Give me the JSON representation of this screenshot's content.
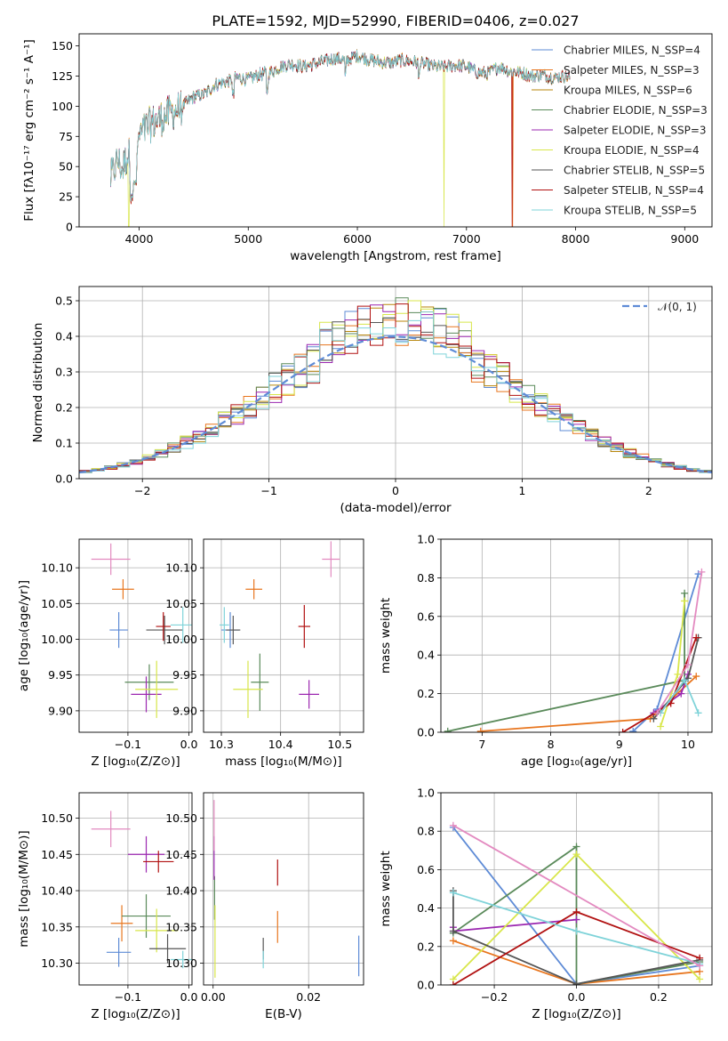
{
  "colors": [
    "#5e8bd6",
    "#e8761f",
    "#b8860b",
    "#5a8a5a",
    "#9b27b0",
    "#d8e64a",
    "#555555",
    "#b11111",
    "#7fd3d9"
  ],
  "pinkColor": "#e38ac0",
  "chart_data": [
    {
      "id": "spectrum",
      "type": "line",
      "title": "PLATE=1592, MJD=52990, FIBERID=0406, z=0.027",
      "xlabel": "wavelength [Angstrom, rest frame]",
      "ylabel": "Flux [fλ10⁻¹⁷ erg cm⁻² s⁻¹ A⁻¹]",
      "xlim": [
        3450,
        9250
      ],
      "ylim": [
        0,
        160
      ],
      "xticks": [
        4000,
        5000,
        6000,
        7000,
        8000,
        9000
      ],
      "yticks": [
        0,
        25,
        50,
        75,
        100,
        125,
        150
      ],
      "grid": false,
      "legend_position": "top-right",
      "legend": [
        "Chabrier MILES, N_SSP=4",
        "Salpeter MILES, N_SSP=3",
        "Kroupa MILES, N_SSP=6",
        "Chabrier ELODIE, N_SSP=3",
        "Salpeter ELODIE, N_SSP=3",
        "Kroupa ELODIE, N_SSP=4",
        "Chabrier STELIB, N_SSP=5",
        "Salpeter STELIB, N_SSP=4",
        "Kroupa STELIB, N_SSP=5"
      ],
      "envelope_x": [
        3740,
        3800,
        3850,
        3900,
        3950,
        4000,
        4100,
        4200,
        4300,
        4400,
        4500,
        4600,
        4700,
        4800,
        4900,
        5000,
        5100,
        5200,
        5300,
        5400,
        5500,
        5600,
        5700,
        5800,
        5900,
        6000,
        6100,
        6200,
        6300,
        6400,
        6500,
        6600,
        6700,
        6800,
        6900,
        7000,
        7100,
        7200,
        7300,
        7400,
        7500,
        7600,
        7700,
        7800,
        7900,
        8000,
        8200,
        8400,
        8600,
        8800,
        9000,
        9200
      ],
      "envelope_y": [
        40,
        55,
        48,
        62,
        45,
        75,
        85,
        90,
        95,
        100,
        108,
        110,
        118,
        120,
        124,
        122,
        126,
        128,
        133,
        135,
        133,
        135,
        137,
        140,
        138,
        142,
        139,
        137,
        136,
        138,
        137,
        135,
        133,
        132,
        134,
        133,
        128,
        127,
        133,
        129,
        128,
        125,
        126,
        124,
        125,
        123,
        121,
        119,
        116,
        112,
        108,
        104
      ],
      "dropouts": [
        {
          "x": 3905,
          "series": 5
        },
        {
          "x": 6795,
          "series": 5
        },
        {
          "x": 7420,
          "series": 7
        },
        {
          "x": 7425,
          "series": 1
        }
      ]
    },
    {
      "id": "residuals",
      "type": "line",
      "xlabel": "(data-model)/error",
      "ylabel": "Normed distribution",
      "xlim": [
        -2.5,
        2.5
      ],
      "ylim": [
        0,
        0.54
      ],
      "xticks": [
        -2,
        -1,
        0,
        1,
        2
      ],
      "yticks": [
        0.0,
        0.1,
        0.2,
        0.3,
        0.4,
        0.5
      ],
      "grid": true,
      "legend_position": "top-right",
      "reference_label": "𝒩(0, 1)",
      "bin_width": 0.1
    },
    {
      "id": "age_vs_Z",
      "type": "scatter",
      "xlabel": "Z [log₁₀(Z/Z⊙)]",
      "ylabel": "age  [log₁₀(age/yr)]",
      "xlim": [
        -0.18,
        0.005
      ],
      "ylim": [
        9.87,
        10.14
      ],
      "xticks": [
        -0.1,
        0.0
      ],
      "xtick_labels": [
        "−0.1",
        "0.0"
      ],
      "yticks": [
        9.9,
        9.95,
        10.0,
        10.05,
        10.1
      ],
      "grid": true,
      "points": [
        {
          "x": -0.115,
          "y": 10.013,
          "xerr": 0.015,
          "yerr": 0.025,
          "color": "#5e8bd6"
        },
        {
          "x": -0.108,
          "y": 10.07,
          "xerr": 0.018,
          "yerr": 0.014,
          "color": "#e8761f"
        },
        {
          "x": -0.065,
          "y": 9.94,
          "xerr": 0.04,
          "yerr": 0.025,
          "color": "#5a8a5a"
        },
        {
          "x": -0.07,
          "y": 9.923,
          "xerr": 0.025,
          "yerr": 0.025,
          "color": "#9b27b0"
        },
        {
          "x": -0.053,
          "y": 9.93,
          "xerr": 0.035,
          "yerr": 0.04,
          "color": "#d8e64a"
        },
        {
          "x": -0.04,
          "y": 10.013,
          "xerr": 0.03,
          "yerr": 0.02,
          "color": "#555555"
        },
        {
          "x": -0.042,
          "y": 10.018,
          "xerr": 0.012,
          "yerr": 0.02,
          "color": "#b11111"
        },
        {
          "x": -0.01,
          "y": 10.02,
          "xerr": 0.02,
          "yerr": 0.025,
          "color": "#7fd3d9"
        },
        {
          "x": -0.128,
          "y": 10.112,
          "xerr": 0.032,
          "yerr": 0.022,
          "color": "#e38ac0"
        }
      ]
    },
    {
      "id": "age_vs_mass",
      "type": "scatter",
      "xlabel": "mass [log₁₀(M/M⊙)]",
      "ylabel": "",
      "xlim": [
        10.27,
        10.54
      ],
      "ylim": [
        9.87,
        10.14
      ],
      "xticks": [
        10.3,
        10.4,
        10.5
      ],
      "xtick_labels": [
        "10.3",
        "10.4",
        "10.5"
      ],
      "yticks": [
        9.9,
        9.95,
        10.0,
        10.05,
        10.1
      ],
      "grid": true,
      "points": [
        {
          "x": 10.315,
          "y": 10.013,
          "xerr": 0.015,
          "yerr": 0.025,
          "color": "#5e8bd6"
        },
        {
          "x": 10.355,
          "y": 10.07,
          "xerr": 0.014,
          "yerr": 0.014,
          "color": "#e8761f"
        },
        {
          "x": 10.365,
          "y": 9.94,
          "xerr": 0.015,
          "yerr": 0.04,
          "color": "#5a8a5a"
        },
        {
          "x": 10.448,
          "y": 9.923,
          "xerr": 0.017,
          "yerr": 0.02,
          "color": "#9b27b0"
        },
        {
          "x": 10.345,
          "y": 9.93,
          "xerr": 0.025,
          "yerr": 0.04,
          "color": "#d8e64a"
        },
        {
          "x": 10.32,
          "y": 10.013,
          "xerr": 0.012,
          "yerr": 0.02,
          "color": "#555555"
        },
        {
          "x": 10.44,
          "y": 10.018,
          "xerr": 0.01,
          "yerr": 0.03,
          "color": "#b11111"
        },
        {
          "x": 10.305,
          "y": 10.02,
          "xerr": 0.008,
          "yerr": 0.025,
          "color": "#7fd3d9"
        },
        {
          "x": 10.485,
          "y": 10.112,
          "xerr": 0.015,
          "yerr": 0.025,
          "color": "#e38ac0"
        }
      ]
    },
    {
      "id": "weight_vs_age",
      "type": "line",
      "xlabel": "age  [log₁₀(age/yr)]",
      "ylabel": "mass weight",
      "xlim": [
        6.4,
        10.35
      ],
      "ylim": [
        0,
        1.0
      ],
      "xticks": [
        7,
        8,
        9,
        10
      ],
      "yticks": [
        0.0,
        0.2,
        0.4,
        0.6,
        0.8,
        1.0
      ],
      "grid": true,
      "series": [
        {
          "color": "#5e8bd6",
          "x": [
            9.2,
            9.55,
            10.15
          ],
          "y": [
            0.005,
            0.12,
            0.82
          ]
        },
        {
          "color": "#e8761f",
          "x": [
            6.98,
            9.45,
            10.12
          ],
          "y": [
            0.005,
            0.07,
            0.29
          ]
        },
        {
          "color": "#5a8a5a",
          "x": [
            6.5,
            9.95,
            9.95
          ],
          "y": [
            0.005,
            0.27,
            0.72
          ]
        },
        {
          "color": "#9b27b0",
          "x": [
            9.5,
            9.9,
            10.0
          ],
          "y": [
            0.1,
            0.2,
            0.3
          ]
        },
        {
          "color": "#d8e64a",
          "x": [
            9.6,
            9.85,
            9.95
          ],
          "y": [
            0.03,
            0.3,
            0.68
          ]
        },
        {
          "color": "#555555",
          "x": [
            9.5,
            10.0,
            10.15
          ],
          "y": [
            0.07,
            0.28,
            0.49
          ]
        },
        {
          "color": "#b11111",
          "x": [
            9.05,
            9.75,
            10.12
          ],
          "y": [
            0.0,
            0.15,
            0.49
          ]
        },
        {
          "color": "#7fd3d9",
          "x": [
            9.6,
            9.95,
            10.15
          ],
          "y": [
            0.1,
            0.27,
            0.1
          ]
        },
        {
          "color": "#e38ac0",
          "x": [
            9.55,
            10.0,
            10.2
          ],
          "y": [
            0.1,
            0.35,
            0.83
          ]
        }
      ]
    },
    {
      "id": "mass_vs_Z",
      "type": "scatter",
      "xlabel": "Z [log₁₀(Z/Z⊙)]",
      "ylabel": "mass [log₁₀(M/M⊙)]",
      "xlim": [
        -0.18,
        0.005
      ],
      "ylim": [
        10.27,
        10.535
      ],
      "xticks": [
        -0.1,
        0.0
      ],
      "xtick_labels": [
        "−0.1",
        "0.0"
      ],
      "yticks": [
        10.3,
        10.35,
        10.4,
        10.45,
        10.5
      ],
      "grid": true,
      "points": [
        {
          "x": -0.115,
          "y": 10.315,
          "xerr": 0.02,
          "yerr": 0.02,
          "color": "#5e8bd6"
        },
        {
          "x": -0.11,
          "y": 10.355,
          "xerr": 0.018,
          "yerr": 0.025,
          "color": "#e8761f"
        },
        {
          "x": -0.07,
          "y": 10.365,
          "xerr": 0.04,
          "yerr": 0.03,
          "color": "#5a8a5a"
        },
        {
          "x": -0.07,
          "y": 10.45,
          "xerr": 0.03,
          "yerr": 0.025,
          "color": "#9b27b0"
        },
        {
          "x": -0.053,
          "y": 10.345,
          "xerr": 0.035,
          "yerr": 0.03,
          "color": "#d8e64a"
        },
        {
          "x": -0.035,
          "y": 10.32,
          "xerr": 0.03,
          "yerr": 0.02,
          "color": "#555555"
        },
        {
          "x": -0.05,
          "y": 10.44,
          "xerr": 0.025,
          "yerr": 0.015,
          "color": "#b11111"
        },
        {
          "x": -0.01,
          "y": 10.305,
          "xerr": 0.02,
          "yerr": 0.012,
          "color": "#7fd3d9"
        },
        {
          "x": -0.128,
          "y": 10.485,
          "xerr": 0.032,
          "yerr": 0.025,
          "color": "#e38ac0"
        }
      ]
    },
    {
      "id": "mass_vs_EBV",
      "type": "scatter",
      "xlabel": "E(B-V)",
      "ylabel": "",
      "xlim": [
        -0.002,
        0.0315
      ],
      "ylim": [
        10.27,
        10.535
      ],
      "xticks": [
        0.0,
        0.02
      ],
      "xtick_labels": [
        "0.00",
        "0.02"
      ],
      "yticks": [
        10.3,
        10.35,
        10.4,
        10.45,
        10.5
      ],
      "grid": true,
      "points": [
        {
          "x": 0.0305,
          "y": 10.31,
          "xerr": 0.0,
          "yerr": 0.028,
          "color": "#5e8bd6"
        },
        {
          "x": 0.0135,
          "y": 10.35,
          "xerr": 0.0,
          "yerr": 0.022,
          "color": "#e8761f"
        },
        {
          "x": 0.0003,
          "y": 10.39,
          "xerr": 0.0,
          "yerr": 0.03,
          "color": "#5a8a5a"
        },
        {
          "x": 0.0002,
          "y": 10.445,
          "xerr": 0.0,
          "yerr": 0.03,
          "color": "#9b27b0"
        },
        {
          "x": 0.0004,
          "y": 10.33,
          "xerr": 0.0,
          "yerr": 0.05,
          "color": "#d8e64a"
        },
        {
          "x": 0.0105,
          "y": 10.32,
          "xerr": 0.0,
          "yerr": 0.015,
          "color": "#555555"
        },
        {
          "x": 0.0135,
          "y": 10.425,
          "xerr": 0.0,
          "yerr": 0.018,
          "color": "#b11111"
        },
        {
          "x": 0.0105,
          "y": 10.305,
          "xerr": 0.0,
          "yerr": 0.012,
          "color": "#7fd3d9"
        },
        {
          "x": 0.0002,
          "y": 10.49,
          "xerr": 0.0,
          "yerr": 0.035,
          "color": "#e38ac0"
        }
      ]
    },
    {
      "id": "weight_vs_Z",
      "type": "line",
      "xlabel": "Z [log₁₀(Z/Z⊙)]",
      "ylabel": "mass weight",
      "xlim": [
        -0.33,
        0.33
      ],
      "ylim": [
        0,
        1.0
      ],
      "xticks": [
        -0.2,
        0.0,
        0.2
      ],
      "xtick_labels": [
        "−0.2",
        "0.0",
        "0.2"
      ],
      "yticks": [
        0.0,
        0.2,
        0.4,
        0.6,
        0.8,
        1.0
      ],
      "grid": true,
      "series": [
        {
          "color": "#5e8bd6",
          "x": [
            -0.3,
            0.0,
            0.3
          ],
          "y": [
            0.82,
            0.005,
            0.1
          ]
        },
        {
          "color": "#e8761f",
          "x": [
            -0.3,
            0.0,
            0.3
          ],
          "y": [
            0.23,
            0.005,
            0.07
          ]
        },
        {
          "color": "#5a8a5a",
          "x": [
            -0.3,
            0.0,
            0.0,
            0.3
          ],
          "y": [
            0.27,
            0.72,
            0.005,
            0.12
          ]
        },
        {
          "color": "#9b27b0",
          "x": [
            -0.3,
            -0.3,
            0.0
          ],
          "y": [
            0.3,
            0.28,
            0.34
          ]
        },
        {
          "color": "#d8e64a",
          "x": [
            -0.3,
            0.0,
            0.3
          ],
          "y": [
            0.03,
            0.68,
            0.03
          ]
        },
        {
          "color": "#555555",
          "x": [
            -0.3,
            -0.3,
            0.0,
            0.3
          ],
          "y": [
            0.49,
            0.28,
            0.005,
            0.13
          ]
        },
        {
          "color": "#b11111",
          "x": [
            -0.3,
            0.0,
            0.3
          ],
          "y": [
            0.0,
            0.38,
            0.14
          ]
        },
        {
          "color": "#7fd3d9",
          "x": [
            -0.3,
            0.0,
            0.3
          ],
          "y": [
            0.48,
            0.28,
            0.11
          ]
        },
        {
          "color": "#e38ac0",
          "x": [
            -0.3,
            0.3
          ],
          "y": [
            0.83,
            0.1
          ]
        }
      ]
    }
  ]
}
